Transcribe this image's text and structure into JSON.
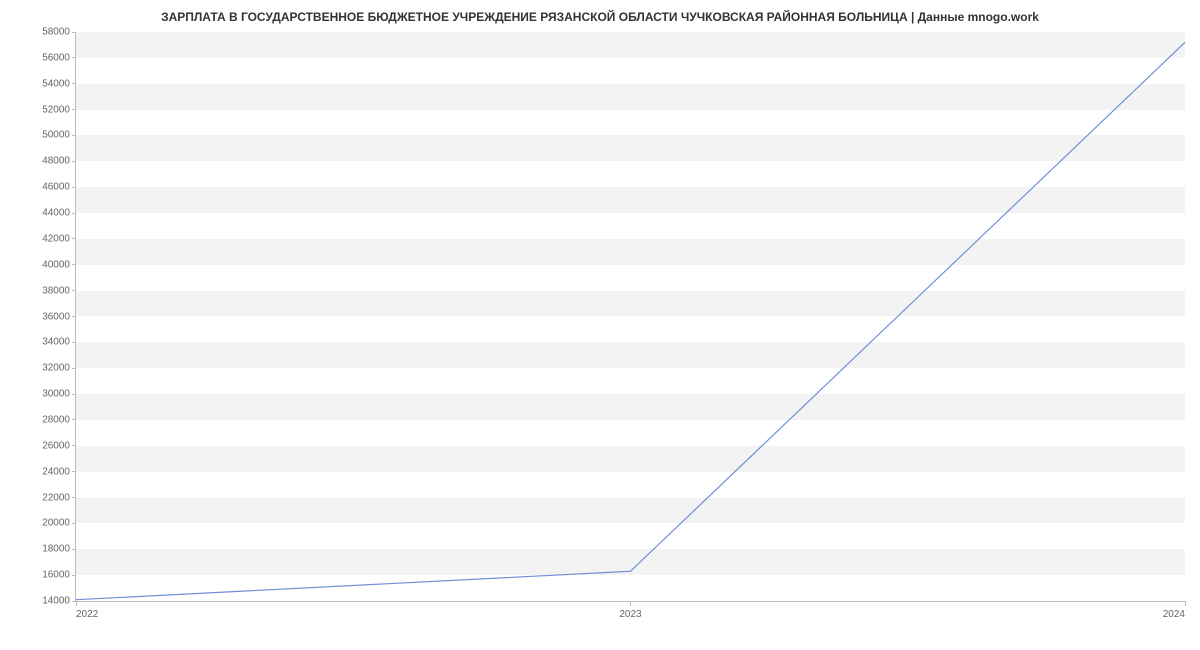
{
  "chart": {
    "type": "line",
    "title": "ЗАРПЛАТА В ГОСУДАРСТВЕННОЕ БЮДЖЕТНОЕ УЧРЕЖДЕНИЕ РЯЗАНСКОЙ ОБЛАСТИ ЧУЧКОВСКАЯ  РАЙОННАЯ БОЛЬНИЦА | Данные mnogo.work",
    "title_fontsize": 12,
    "title_color": "#333333",
    "background_color": "#ffffff",
    "band_color": "#f3f3f3",
    "axis_color": "#bbbbbb",
    "tick_label_color": "#666666",
    "tick_label_fontsize": 10,
    "line_color": "#6f8fd8",
    "line_width": 1.2,
    "x": {
      "min": 2022,
      "max": 2024,
      "ticks": [
        2022,
        2023,
        2024
      ],
      "labels": [
        "2022",
        "2023",
        "2024"
      ]
    },
    "y": {
      "min": 14000,
      "max": 58000,
      "tick_step": 2000,
      "ticks": [
        14000,
        16000,
        18000,
        20000,
        22000,
        24000,
        26000,
        28000,
        30000,
        32000,
        34000,
        36000,
        38000,
        40000,
        42000,
        44000,
        46000,
        48000,
        50000,
        52000,
        54000,
        56000,
        58000
      ]
    },
    "series": [
      {
        "x": 2022,
        "y": 14100
      },
      {
        "x": 2023,
        "y": 16300
      },
      {
        "x": 2024,
        "y": 57200
      }
    ]
  }
}
